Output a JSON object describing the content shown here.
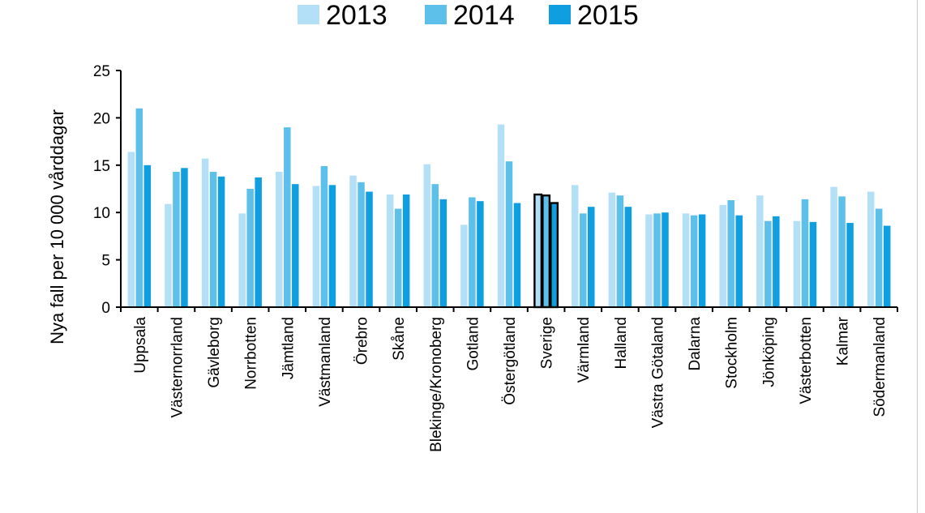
{
  "chart_data": {
    "type": "bar",
    "title": "",
    "xlabel": "",
    "ylabel": "Nya fall per 10 000 vårddagar",
    "ylim": [
      0,
      25
    ],
    "yticks": [
      0,
      5,
      10,
      15,
      20,
      25
    ],
    "grid": false,
    "legend_position": "top-center",
    "categories": [
      "Uppsala",
      "Västernorrland",
      "Gävleborg",
      "Norrbotten",
      "Jämtland",
      "Västmanland",
      "Örebro",
      "Skåne",
      "Blekinge/Kronoberg",
      "Gotland",
      "Östergötland",
      "Sverige",
      "Värmland",
      "Halland",
      "Västra Götaland",
      "Dalarna",
      "Stockholm",
      "Jönköping",
      "Västerbotten",
      "Kalmar",
      "Södermanland"
    ],
    "highlight_category": "Sverige",
    "series": [
      {
        "name": "2013",
        "color": "#b3e0f7",
        "values": [
          16.4,
          10.9,
          15.7,
          9.9,
          14.3,
          12.8,
          13.9,
          11.9,
          15.1,
          8.7,
          19.3,
          11.9,
          12.9,
          12.1,
          9.8,
          9.9,
          10.8,
          11.8,
          9.1,
          12.7,
          12.2
        ]
      },
      {
        "name": "2014",
        "color": "#5cc0ea",
        "values": [
          21.0,
          14.3,
          14.3,
          12.5,
          19.0,
          14.9,
          13.2,
          10.4,
          13.0,
          11.6,
          15.4,
          11.8,
          9.9,
          11.8,
          9.9,
          9.7,
          11.3,
          9.1,
          11.4,
          11.7,
          10.4
        ]
      },
      {
        "name": "2015",
        "color": "#0f9ee0",
        "values": [
          15.0,
          14.7,
          13.8,
          13.7,
          13.0,
          12.9,
          12.2,
          11.9,
          11.4,
          11.2,
          11.0,
          11.0,
          10.6,
          10.6,
          10.0,
          9.8,
          9.7,
          9.6,
          9.0,
          8.9,
          8.6
        ]
      }
    ]
  }
}
